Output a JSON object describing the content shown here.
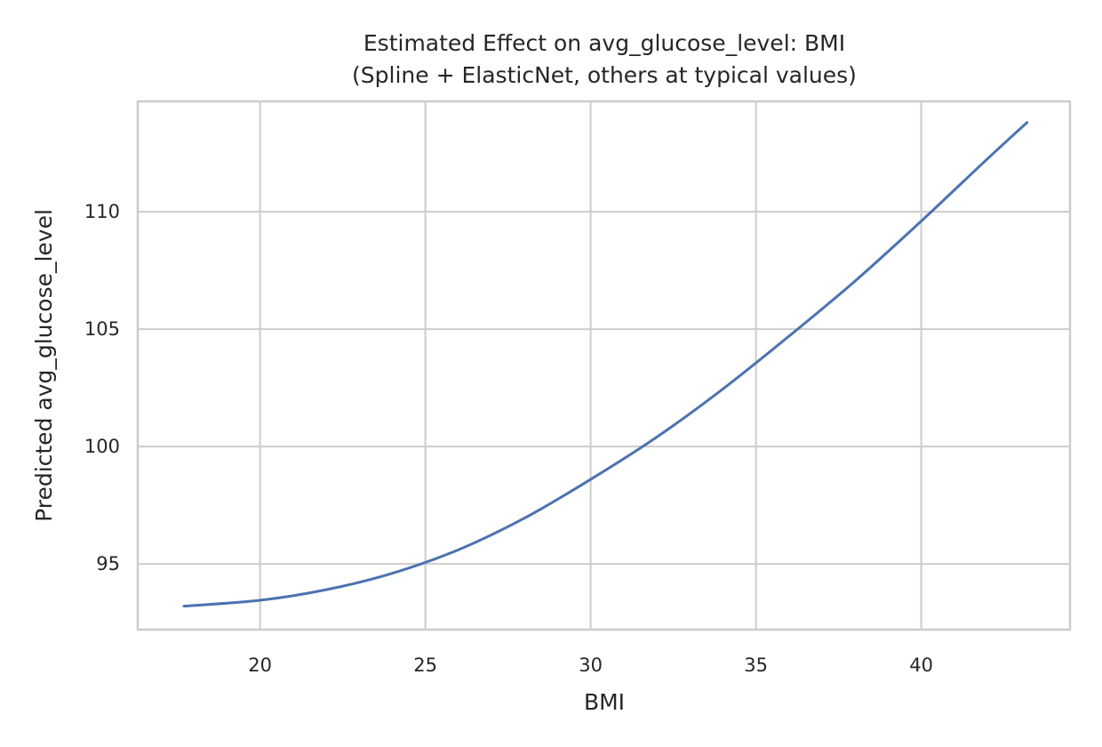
{
  "chart_data": {
    "type": "line",
    "title": "Estimated Effect on avg_glucose_level: BMI",
    "subtitle": "(Spline + ElasticNet, others at typical values)",
    "xlabel": "BMI",
    "ylabel": "Predicted avg_glucose_level",
    "xlim": [
      16.3,
      44.5
    ],
    "ylim": [
      92.2,
      114.7
    ],
    "xticks": [
      20,
      25,
      30,
      35,
      40
    ],
    "yticks": [
      95,
      100,
      105,
      110
    ],
    "grid": true,
    "legend": "none",
    "colors": {
      "line": "#4c72b0",
      "grid": "#cccccc",
      "frame": "#cccccc",
      "text": "#262626"
    },
    "series": [
      {
        "x": [
          17.7,
          20,
          22,
          24,
          26,
          28,
          30,
          32,
          34,
          36,
          38,
          40,
          42,
          43.2
        ],
        "y": [
          93.2,
          93.45,
          93.9,
          94.6,
          95.6,
          96.95,
          98.6,
          100.4,
          102.45,
          104.7,
          107.05,
          109.6,
          112.25,
          113.8
        ]
      }
    ]
  }
}
